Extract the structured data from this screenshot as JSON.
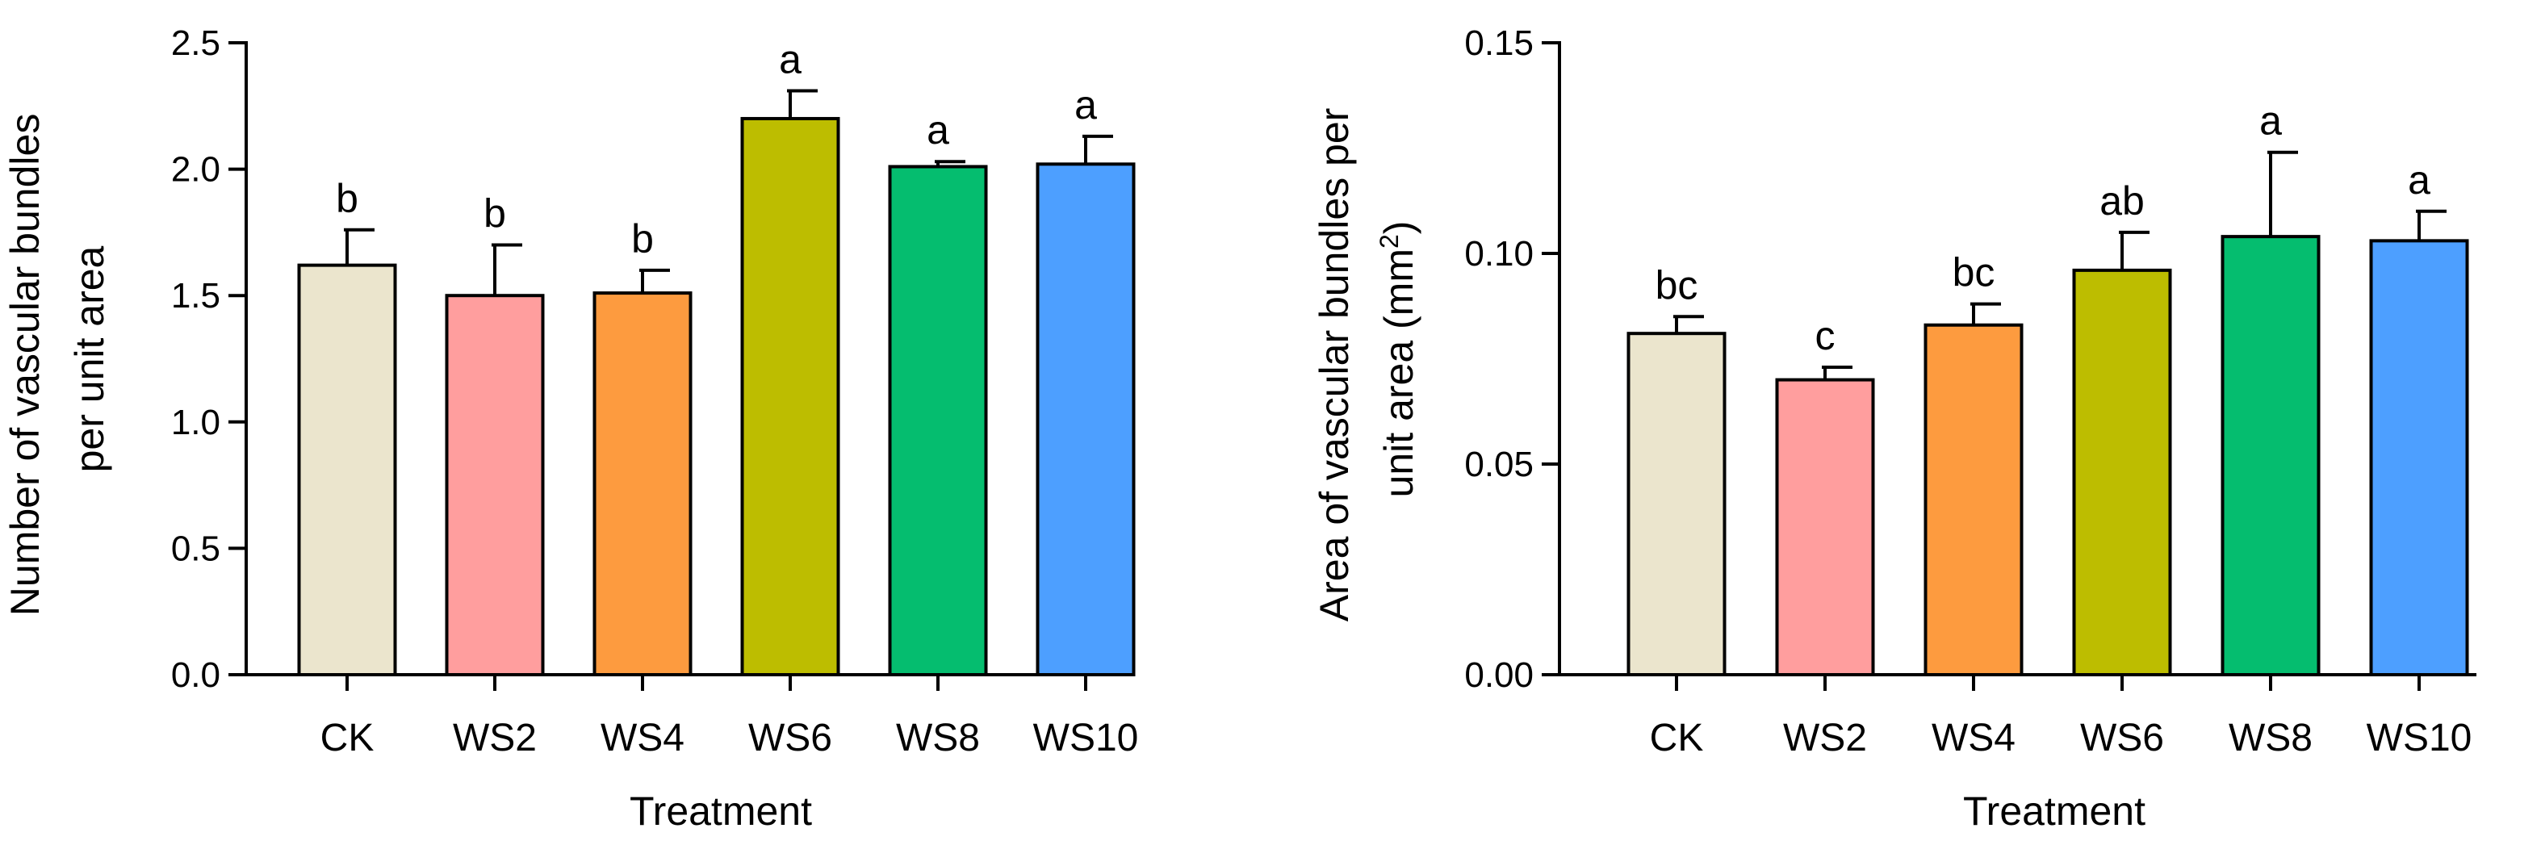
{
  "chart_data": [
    {
      "type": "bar",
      "title": "",
      "xlabel": "Treatment",
      "ylabel_lines": [
        "Number of vascular bundles",
        "per unit area"
      ],
      "ylim": [
        0,
        2.5
      ],
      "yticks": [
        "0.0",
        "0.5",
        "1.0",
        "1.5",
        "2.0",
        "2.5"
      ],
      "categories": [
        "CK",
        "WS2",
        "WS4",
        "WS6",
        "WS8",
        "WS10"
      ],
      "values": [
        1.62,
        1.5,
        1.51,
        2.2,
        2.01,
        2.02
      ],
      "errors": [
        0.14,
        0.2,
        0.09,
        0.11,
        0.02,
        0.11
      ],
      "significance": [
        "b",
        "b",
        "b",
        "a",
        "a",
        "a"
      ],
      "colors": [
        "#ebe5cd",
        "#ff9e9e",
        "#fd9b3f",
        "#bdbd00",
        "#05bd6f",
        "#4d9fff"
      ]
    },
    {
      "type": "bar",
      "title": "",
      "xlabel": "Treatment",
      "ylabel_lines": [
        "Area of vascular bundles per",
        "unit area (mm",
        "2",
        ")"
      ],
      "ylim": [
        0,
        0.15
      ],
      "yticks": [
        "0.00",
        "0.05",
        "0.10",
        "0.15"
      ],
      "categories": [
        "CK",
        "WS2",
        "WS4",
        "WS6",
        "WS8",
        "WS10"
      ],
      "values": [
        0.081,
        0.07,
        0.083,
        0.096,
        0.104,
        0.103
      ],
      "errors": [
        0.004,
        0.003,
        0.005,
        0.009,
        0.02,
        0.007
      ],
      "significance": [
        "bc",
        "c",
        "bc",
        "ab",
        "a",
        "a"
      ],
      "colors": [
        "#ebe5cd",
        "#ff9e9e",
        "#fd9b3f",
        "#bdbd00",
        "#05bd6f",
        "#4d9fff"
      ]
    }
  ]
}
